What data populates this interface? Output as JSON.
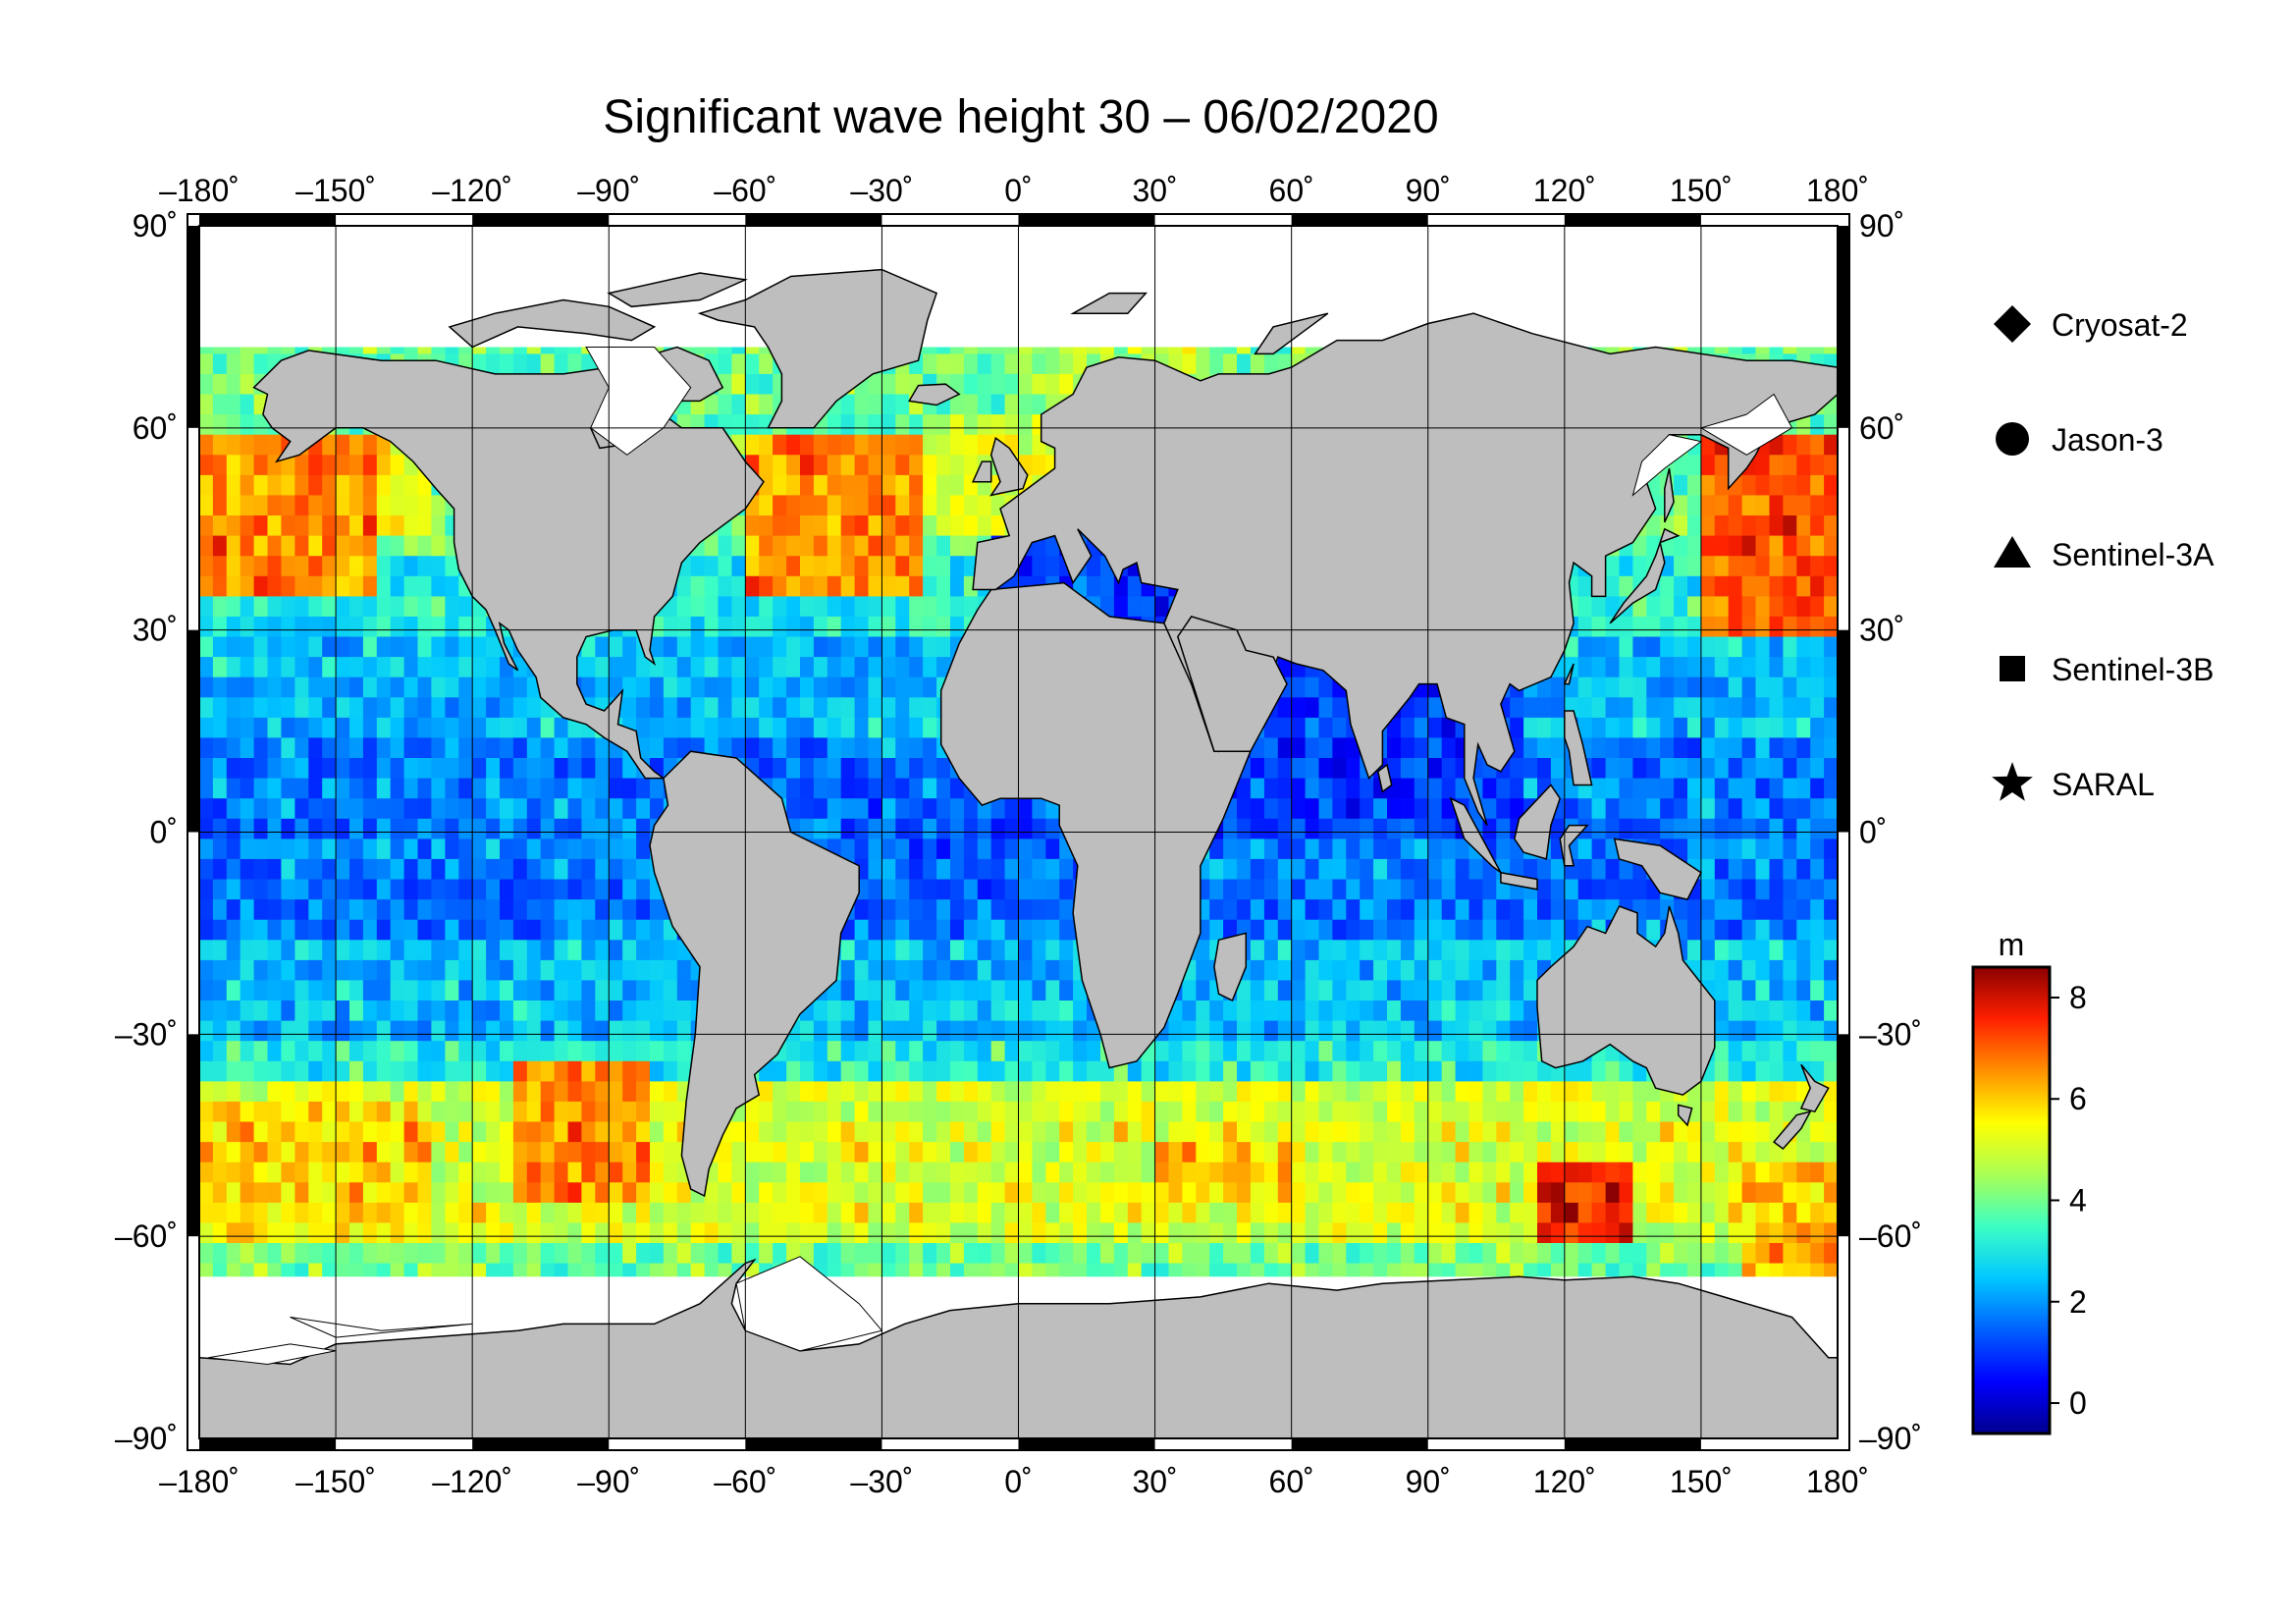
{
  "title": "Significant wave height 30 – 06/02/2020",
  "map": {
    "x_ticks": [
      "–180˚",
      "–150˚",
      "–120˚",
      "–90˚",
      "–60˚",
      "–30˚",
      "0˚",
      "30˚",
      "60˚",
      "90˚",
      "120˚",
      "150˚",
      "180˚"
    ],
    "y_ticks": [
      "90˚",
      "60˚",
      "30˚",
      "0˚",
      "–30˚",
      "–60˚",
      "–90˚"
    ],
    "lon_range": [
      -180,
      180
    ],
    "lat_range": [
      -90,
      90
    ],
    "colors": {
      "land": "#bebebe",
      "ice": "#ffffff",
      "frame": "#000000"
    }
  },
  "legend": {
    "items": [
      {
        "label": "Cryosat-2",
        "marker": "diamond"
      },
      {
        "label": "Jason-3",
        "marker": "circle"
      },
      {
        "label": "Sentinel-3A",
        "marker": "triangle"
      },
      {
        "label": "Sentinel-3B",
        "marker": "square"
      },
      {
        "label": "SARAL",
        "marker": "star"
      }
    ]
  },
  "colorbar": {
    "unit": "m",
    "ticks": [
      "8",
      "6",
      "4",
      "2",
      "0"
    ],
    "range": [
      -0.6,
      8.6
    ],
    "colormap": [
      "#00008f",
      "#0000ff",
      "#0060ff",
      "#00c8ff",
      "#3cffc3",
      "#aaff55",
      "#ffff00",
      "#ff9000",
      "#ff2000",
      "#8b0000"
    ]
  },
  "chart_data": {
    "type": "heatmap",
    "title": "Significant wave height 30 – 06/02/2020",
    "variable": "Significant wave height",
    "unit": "m",
    "x_range": [
      -180,
      180
    ],
    "y_range": [
      -90,
      90
    ],
    "color_range": [
      0,
      8
    ],
    "regions": [
      {
        "area": "North Pacific (40–60N, 180–150W)",
        "approx_value_m": 6
      },
      {
        "area": "Northwest Pacific (30–55N, 150–180E)",
        "approx_value_m": 7
      },
      {
        "area": "North Atlantic (35–60N, 60–20W)",
        "approx_value_m": 6.5
      },
      {
        "area": "Norwegian Sea (65–75N, 0–40E)",
        "approx_value_m": 4.5
      },
      {
        "area": "Tropical oceans (20S–20N)",
        "approx_value_m": 2
      },
      {
        "area": "Southern Ocean (40–60S)",
        "approx_value_m": 5
      },
      {
        "area": "South of Australia (50–60S, 120–135E)",
        "approx_value_m": 7.5
      },
      {
        "area": "Mediterranean Sea",
        "approx_value_m": 1
      },
      {
        "area": "North Indian Ocean",
        "approx_value_m": 1
      }
    ]
  }
}
